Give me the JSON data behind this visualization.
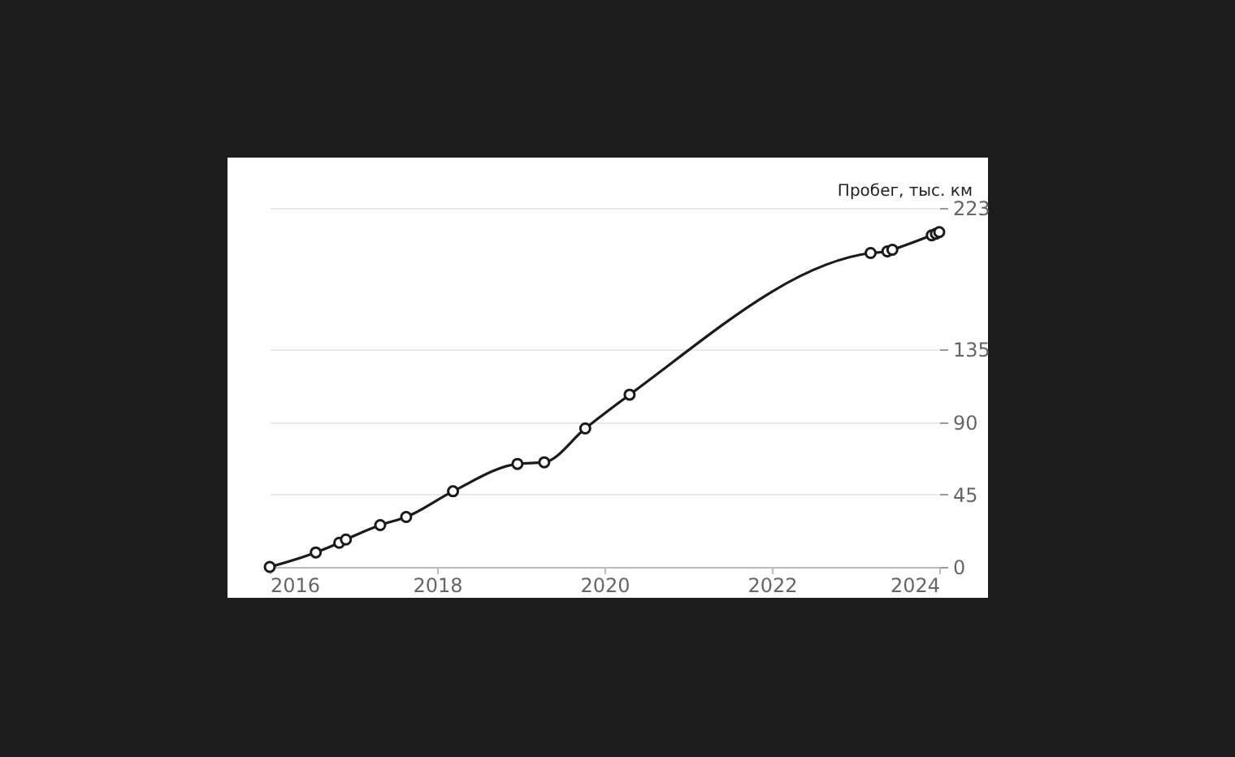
{
  "chart_data": {
    "type": "line",
    "ylabel": "Пробег, тыс. км",
    "x": [
      2016,
      2016.55,
      2016.83,
      2016.91,
      2017.32,
      2017.63,
      2018.19,
      2018.96,
      2019.28,
      2019.77,
      2020.3,
      2023.18,
      2023.38,
      2023.44,
      2023.91,
      2023.96,
      2024
    ],
    "series": [
      {
        "color": "#1a1a1a",
        "values": [
          0,
          9,
          15,
          17,
          26,
          31,
          47,
          64,
          65,
          86,
          107,
          195,
          196,
          197,
          206,
          207,
          208
        ]
      }
    ],
    "xlim": [
      2016,
      2024
    ],
    "xticks": [
      2016,
      2018,
      2020,
      2022,
      2024
    ],
    "ylim": [
      0,
      223
    ],
    "yticks": [
      0,
      45,
      90,
      135,
      223
    ],
    "grid": "y",
    "marker": "circle",
    "line_style": "solid"
  }
}
